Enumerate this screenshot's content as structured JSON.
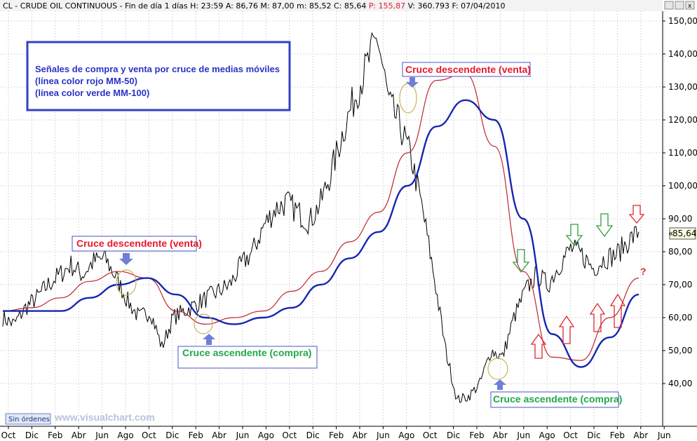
{
  "header": {
    "symbol": "CL - CRUDE OIL CONTINUOUS",
    "period": "Fin de día 1 días",
    "stats": [
      {
        "label": "H:",
        "value": "23:59",
        "color": "#000000"
      },
      {
        "label": "A:",
        "value": "86,76",
        "color": "#000000"
      },
      {
        "label": "M:",
        "value": "87,00",
        "color": "#000000"
      },
      {
        "label": "m:",
        "value": "85,52",
        "color": "#000000"
      },
      {
        "label": "C:",
        "value": "85,64",
        "color": "#000000"
      },
      {
        "label": "P:",
        "value": "155,87",
        "color": "#e8192c"
      },
      {
        "label": "V:",
        "value": "360.793",
        "color": "#000000"
      },
      {
        "label": "F:",
        "value": "07/04/2010",
        "color": "#000000"
      }
    ]
  },
  "footer": {
    "orders_button": "Sin órdenes",
    "watermark": "www.visualchart.com"
  },
  "info_box": {
    "lines": [
      "Señales de compra y venta por cruce de medias móviles",
      "(línea color rojo MM-50)",
      "(línea color verde MM-100)"
    ],
    "border_color": "#3340c4"
  },
  "annotations": {
    "sell_1": "Cruce descendente (venta)",
    "buy_1": "Cruce ascendente (compra)",
    "sell_2": "Cruce descendente (venta)",
    "buy_2": "Cruce ascendente (compra)",
    "question": "?"
  },
  "last_price": "85,64",
  "colors": {
    "price": "#000000",
    "ma50": "#c0262d",
    "ma100": "#1726b0",
    "grid": "#b8b8b8",
    "arrow_blue": "#6f7fd6",
    "arrow_red": "#e0272f",
    "arrow_green": "#2f9e3e"
  },
  "chart_data": {
    "type": "line",
    "title": "CL - CRUDE OIL CONTINUOUS",
    "xlabel": "",
    "ylabel": "",
    "ylim": [
      30,
      152
    ],
    "y_ticks": [
      "40,00",
      "50,00",
      "60,00",
      "70,00",
      "80,00",
      "90,00",
      "100,00",
      "110,00",
      "120,00",
      "130,00",
      "140,00",
      "150,00"
    ],
    "x_ticks": [
      "Oct",
      "Dic",
      "Feb",
      "Abr",
      "Jun",
      "Ago",
      "Oct",
      "Dic",
      "Feb",
      "Abr",
      "Jun",
      "Ago",
      "Oct",
      "Dic",
      "Feb",
      "Abr",
      "Jun",
      "Ago",
      "Oct",
      "Dic",
      "Feb",
      "Abr",
      "Jun",
      "Ago",
      "Oct",
      "Dic",
      "Feb",
      "Abr",
      "Jun"
    ],
    "grid": true,
    "series": [
      {
        "name": "MM-50",
        "x": [
          0,
          2,
          4,
          6,
          8,
          10,
          12,
          14,
          16,
          18,
          20,
          22,
          24,
          26,
          28,
          30,
          32,
          34,
          36,
          38,
          40,
          42,
          44
        ],
        "values": [
          62,
          63,
          66,
          71,
          74,
          72,
          62,
          58,
          60,
          62,
          68,
          74,
          83,
          92,
          110,
          132,
          134,
          112,
          74,
          48,
          47,
          60,
          72
        ]
      },
      {
        "name": "MM-100",
        "x": [
          0,
          2,
          4,
          6,
          8,
          10,
          12,
          14,
          16,
          18,
          20,
          22,
          24,
          26,
          28,
          30,
          32,
          34,
          36,
          38,
          40,
          42,
          44
        ],
        "values": [
          62,
          62,
          62,
          66,
          70,
          72,
          67,
          60,
          58,
          60,
          63,
          70,
          78,
          86,
          100,
          118,
          126,
          120,
          90,
          55,
          45,
          54,
          67
        ]
      }
    ],
    "price": {
      "x": [
        0,
        1,
        2,
        3,
        4,
        5,
        6,
        7,
        8,
        9,
        10,
        11,
        12,
        13,
        14,
        15,
        16,
        17,
        18,
        19,
        20,
        21,
        22,
        23,
        24,
        25,
        26,
        27,
        28,
        29,
        30,
        31,
        32,
        33,
        34,
        35,
        36,
        37,
        38,
        39,
        40,
        41,
        42,
        43,
        44,
        45,
        46,
        47,
        48,
        49,
        50,
        51,
        52,
        53,
        54,
        55,
        56
      ],
      "values": [
        60,
        58,
        63,
        66,
        70,
        73,
        76,
        73,
        77,
        78,
        72,
        65,
        60,
        62,
        51,
        60,
        62,
        64,
        66,
        68,
        70,
        76,
        80,
        88,
        93,
        95,
        92,
        89,
        95,
        105,
        117,
        127,
        136,
        145,
        125,
        118,
        108,
        92,
        72,
        50,
        35,
        36,
        40,
        50,
        48,
        60,
        68,
        73,
        70,
        76,
        81,
        79,
        75,
        78,
        79,
        83,
        86
      ]
    },
    "price_ylim": [
      30,
      152
    ]
  }
}
